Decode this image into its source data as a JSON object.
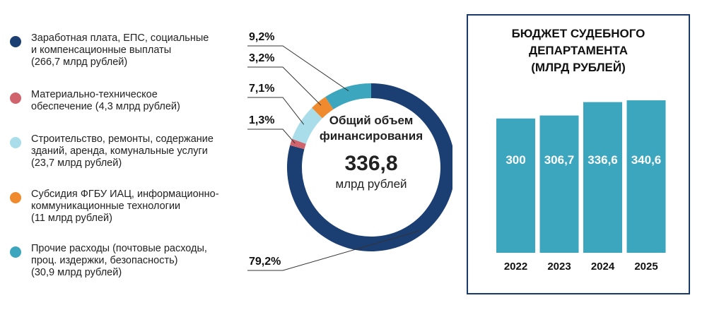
{
  "colors": {
    "navy": "#1b3f73",
    "red": "#d1636c",
    "light_blue": "#a9dde9",
    "orange": "#ef8a2e",
    "teal": "#3ba6bd",
    "line": "#333333"
  },
  "legend": [
    {
      "text": "Заработная плата, ЕПС, социальные\nи компенсационные выплаты\n(266,7 млрд рублей)",
      "color": "#1b3f73"
    },
    {
      "text": "Материально-техническое\nобеспечение (4,3 млрд рублей)",
      "color": "#d1636c"
    },
    {
      "text": "Строительство, ремонты, содержание\nзданий, аренда, комунальные услуги\n(23,7 млрд рублей)",
      "color": "#a9dde9"
    },
    {
      "text": "Субсидия ФГБУ ИАЦ, информационно-\nкоммуникационные технологии\n(11 млрд рублей)",
      "color": "#ef8a2e"
    },
    {
      "text": "Прочие расходы (почтовые расходы,\nпроц. издержки, безопасность)\n(30,9 млрд рублей)",
      "color": "#3ba6bd"
    }
  ],
  "center": {
    "title": "Общий объем\nфинансирования",
    "value": "336,8",
    "unit": "млрд рублей"
  },
  "bar_panel": {
    "title": "БЮДЖЕТ СУДЕБНОГО\nДЕПАРТАМЕНТА\n(МЛРД РУБЛЕЙ)"
  },
  "chart_data": [
    {
      "type": "pie",
      "categories": [
        "Заработная плата, ЕПС, социальные и компенсационные выплаты",
        "Материально-техническое обеспечение",
        "Строительство, ремонты, содержание зданий, аренда, комунальные услуги",
        "Субсидия ФГБУ ИАЦ, информационно-коммуникационные технологии",
        "Прочие расходы"
      ],
      "values": [
        266.7,
        4.3,
        23.7,
        11,
        30.9
      ],
      "labels": [
        "79,2%",
        "1,3%",
        "7,1%",
        "3,2%",
        "9,2%"
      ],
      "colors": [
        "#1b3f73",
        "#d1636c",
        "#a9dde9",
        "#ef8a2e",
        "#3ba6bd"
      ]
    },
    {
      "type": "bar",
      "categories": [
        "2022",
        "2023",
        "2024",
        "2025"
      ],
      "values": [
        300,
        306.7,
        336.6,
        340.6
      ],
      "labels": [
        "300",
        "306,7",
        "336,6",
        "340,6"
      ],
      "color": "#3ba6bd"
    }
  ]
}
